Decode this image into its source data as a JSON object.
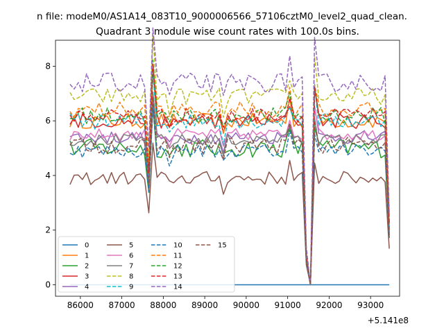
{
  "figure": {
    "suptitle": "n file: modeM0/AS1A14_083T10_9000006566_57106cztM0_level2_quad_clean.",
    "title": "Quadrant 3 module wise count rates with 100.0s bins.",
    "x_offset_label": "+5.141e8"
  },
  "chart_data": {
    "type": "line",
    "title": "Quadrant 3 module wise count rates with 100.0s bins.",
    "xlabel": "",
    "ylabel": "",
    "x_offset": 514100000,
    "xlim": [
      85400,
      93700
    ],
    "ylim": [
      -0.42,
      8.95
    ],
    "xticks": [
      86000,
      87000,
      88000,
      89000,
      90000,
      91000,
      92000,
      93000
    ],
    "xtick_labels": [
      "86000",
      "87000",
      "88000",
      "89000",
      "90000",
      "91000",
      "92000",
      "93000"
    ],
    "yticks": [
      0,
      2,
      4,
      6,
      8
    ],
    "ytick_labels": [
      "0",
      "2",
      "4",
      "6",
      "8"
    ],
    "grid": false,
    "legend": {
      "location": "lower left",
      "columns": 4
    },
    "x_start": 85750,
    "x_step": 100,
    "n_points": 78,
    "series": [
      {
        "name": "0",
        "color": "#1f77b4",
        "dash": "solid",
        "base": 0.0,
        "amp": 0.0
      },
      {
        "name": "1",
        "color": "#ff7f0e",
        "dash": "solid",
        "base": 6.0,
        "amp": 0.28
      },
      {
        "name": "2",
        "color": "#2ca02c",
        "dash": "solid",
        "base": 5.0,
        "amp": 0.35
      },
      {
        "name": "3",
        "color": "#d62728",
        "dash": "solid",
        "base": 6.0,
        "amp": 0.28
      },
      {
        "name": "4",
        "color": "#9467bd",
        "dash": "solid",
        "base": 5.4,
        "amp": 0.25
      },
      {
        "name": "5",
        "color": "#8c564b",
        "dash": "solid",
        "base": 3.9,
        "amp": 0.25
      },
      {
        "name": "6",
        "color": "#e377c2",
        "dash": "solid",
        "base": 5.5,
        "amp": 0.22
      },
      {
        "name": "7",
        "color": "#7f7f7f",
        "dash": "solid",
        "base": 5.3,
        "amp": 0.22
      },
      {
        "name": "8",
        "color": "#bcbd22",
        "dash": "dashed",
        "base": 6.9,
        "amp": 0.3
      },
      {
        "name": "9",
        "color": "#17becf",
        "dash": "dashed",
        "base": 6.0,
        "amp": 0.3
      },
      {
        "name": "10",
        "color": "#1f77b4",
        "dash": "dashed",
        "base": 4.9,
        "amp": 0.25
      },
      {
        "name": "11",
        "color": "#ff7f0e",
        "dash": "dashed",
        "base": 6.4,
        "amp": 0.3
      },
      {
        "name": "12",
        "color": "#2ca02c",
        "dash": "dashed",
        "base": 6.2,
        "amp": 0.3
      },
      {
        "name": "13",
        "color": "#d62728",
        "dash": "dashed",
        "base": 6.2,
        "amp": 0.28
      },
      {
        "name": "14",
        "color": "#9467bd",
        "dash": "dashed",
        "base": 7.4,
        "amp": 0.35
      },
      {
        "name": "15",
        "color": "#8c564b",
        "dash": "dashed",
        "base": 5.1,
        "amp": 0.3
      }
    ],
    "dips": [
      {
        "x": 87400,
        "factor": 0.78
      },
      {
        "x": 87650,
        "factor": 0.68
      },
      {
        "x": 88150,
        "factor": 0.93
      },
      {
        "x": 89450,
        "factor": 0.9
      },
      {
        "x": 91450,
        "factor": 0.18
      },
      {
        "x": 91550,
        "factor": 0.0
      },
      {
        "x": 93400,
        "factor": 0.8
      },
      {
        "x": 93450,
        "factor": 0.35
      }
    ],
    "peaks": [
      {
        "x": 87750,
        "factor": 1.28
      },
      {
        "x": 91650,
        "factor": 1.18
      },
      {
        "x": 91050,
        "factor": 1.12
      }
    ]
  }
}
